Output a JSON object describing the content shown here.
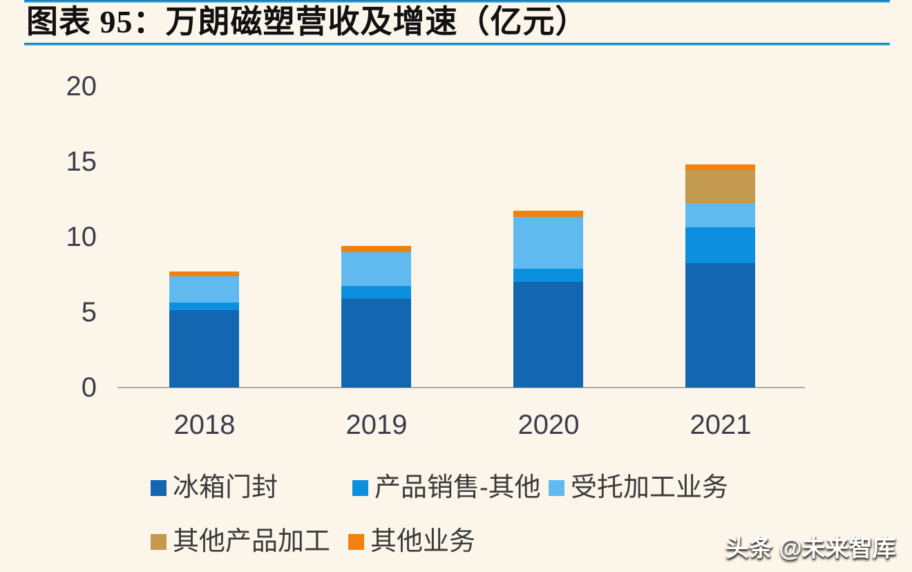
{
  "panel": {
    "title": "图表 95：万朗磁塑营收及增速（亿元）",
    "watermark": "头条 @未来智库"
  },
  "colors": {
    "background": "#FBF5EA",
    "accent_line": "#1B8DD0",
    "axis_line": "#AEADAB",
    "axis_text": "#3C3C4B",
    "legend_text": "#3A3A3A",
    "title_text": "#111111"
  },
  "chart_data": {
    "type": "bar",
    "stacked": true,
    "title": "图表 95：万朗磁塑营收及增速（亿元）",
    "unit": "亿元",
    "categories": [
      "2018",
      "2019",
      "2020",
      "2021"
    ],
    "series": [
      {
        "name": "冰箱门封",
        "color": "#1366B0",
        "values": [
          5.15,
          5.9,
          7.0,
          8.25
        ]
      },
      {
        "name": "产品销售-其他",
        "color": "#0D8FDF",
        "values": [
          0.5,
          0.85,
          0.9,
          2.4
        ]
      },
      {
        "name": "受托加工业务",
        "color": "#61BAEF",
        "values": [
          1.75,
          2.25,
          3.45,
          1.6
        ]
      },
      {
        "name": "其他产品加工",
        "color": "#C49A50",
        "values": [
          0,
          0,
          0,
          2.2
        ]
      },
      {
        "name": "其他业务",
        "color": "#EF8210",
        "values": [
          0.3,
          0.4,
          0.4,
          0.35
        ]
      }
    ],
    "ylim": [
      0,
      20
    ],
    "yticks": [
      0,
      5,
      10,
      15,
      20
    ],
    "grid": false,
    "legend_position": "bottom",
    "legend_rows": [
      [
        "冰箱门封",
        "产品销售-其他",
        "受托加工业务"
      ],
      [
        "其他产品加工",
        "其他业务"
      ]
    ]
  }
}
